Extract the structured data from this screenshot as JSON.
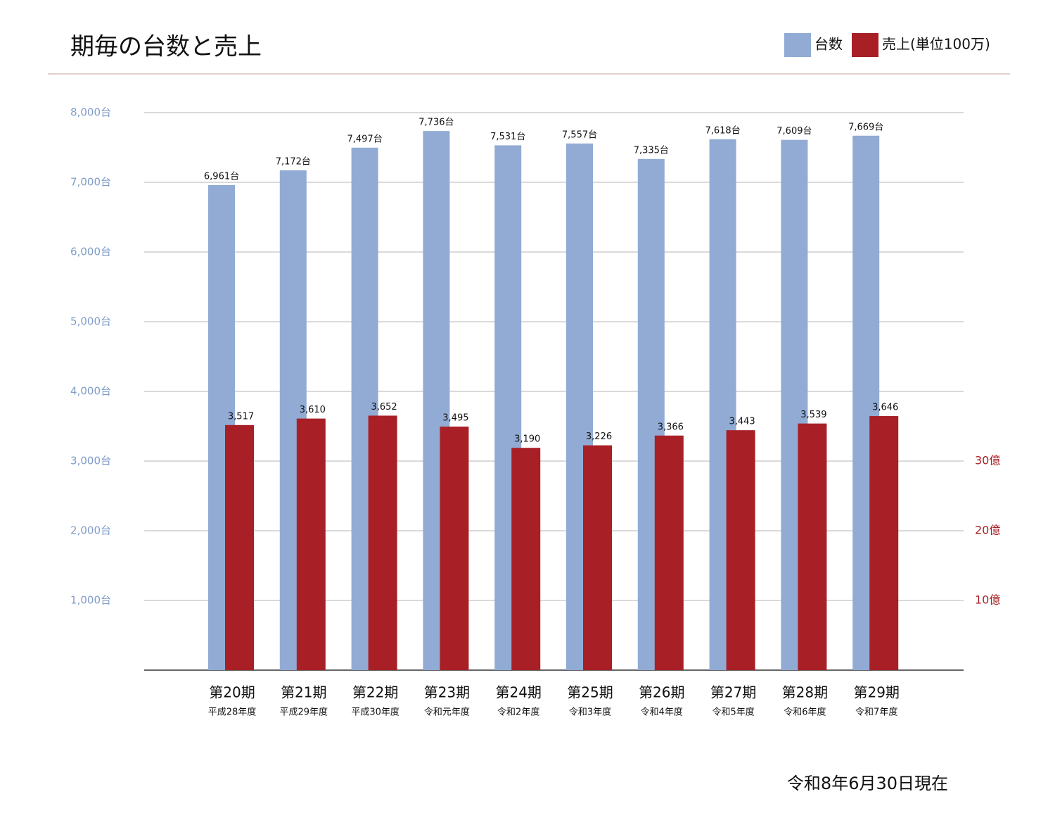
{
  "chart_data": {
    "type": "bar",
    "title": "期毎の台数と売上",
    "categories": [
      "第20期",
      "第21期",
      "第22期",
      "第23期",
      "第24期",
      "第25期",
      "第26期",
      "第27期",
      "第28期",
      "第29期"
    ],
    "category_notes": [
      "平成28年度",
      "平成29年度",
      "平成30年度",
      "令和元年度",
      "令和2年度",
      "令和3年度",
      "令和4年度",
      "令和5年度",
      "令和6年度",
      "令和7年度"
    ],
    "series": [
      {
        "name": "台数",
        "color": "#91abd4",
        "values": [
          6961,
          7172,
          7497,
          7736,
          7531,
          7557,
          7335,
          7618,
          7609,
          7669
        ],
        "value_labels": [
          "6,961台",
          "7,172台",
          "7,497台",
          "7,736台",
          "7,531台",
          "7,557台",
          "7,335台",
          "7,618台",
          "7,609台",
          "7,669台"
        ]
      },
      {
        "name": "売上(単位100万)",
        "color": "#a82026",
        "axis": "y2",
        "values": [
          3517,
          3610,
          3652,
          3495,
          3190,
          3226,
          3366,
          3443,
          3539,
          3646
        ],
        "value_labels": [
          "3,517",
          "3,610",
          "3,652",
          "3,495",
          "3,190",
          "3,226",
          "3,366",
          "3,443",
          "3,539",
          "3,646"
        ]
      }
    ],
    "ylim": [
      0,
      8000
    ],
    "yticks": [
      {
        "value": 1000,
        "label": "1,000台"
      },
      {
        "value": 2000,
        "label": "2,000台"
      },
      {
        "value": 3000,
        "label": "3,000台"
      },
      {
        "value": 4000,
        "label": "4,000台"
      },
      {
        "value": 5000,
        "label": "5,000台"
      },
      {
        "value": 6000,
        "label": "6,000台"
      },
      {
        "value": 7000,
        "label": "7,000台"
      },
      {
        "value": 8000,
        "label": "8,000台"
      }
    ],
    "y2lim": [
      0,
      8000
    ],
    "y2ticks": [
      {
        "value": 1000,
        "label": "10億"
      },
      {
        "value": 2000,
        "label": "20億"
      },
      {
        "value": 3000,
        "label": "30億"
      }
    ],
    "grid": true,
    "legend": "top-right",
    "note": "令和8年6月30日現在"
  }
}
